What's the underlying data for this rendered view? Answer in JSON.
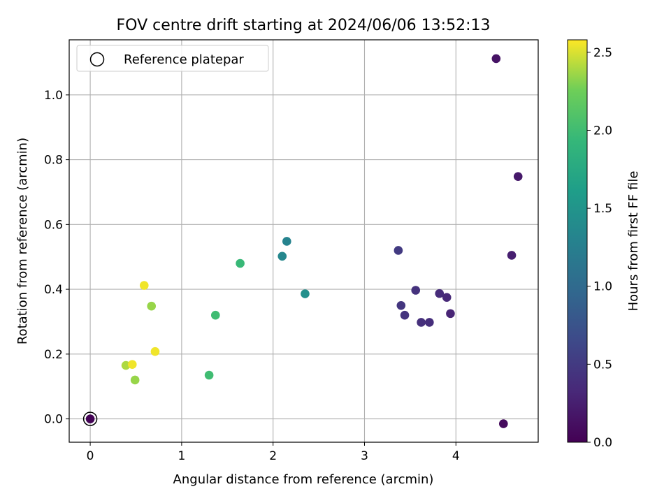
{
  "chart_data": {
    "type": "scatter",
    "title": "FOV centre drift starting at 2024/06/06 13:52:13",
    "xlabel": "Angular distance from reference (arcmin)",
    "ylabel": "Rotation from reference (arcmin)",
    "xlim": [
      -0.23,
      4.9
    ],
    "ylim": [
      -0.072,
      1.17
    ],
    "x_ticks": [
      0,
      1,
      2,
      3,
      4
    ],
    "y_ticks": [
      0.0,
      0.2,
      0.4,
      0.6,
      0.8,
      1.0
    ],
    "x_tick_labels": [
      "0",
      "1",
      "2",
      "3",
      "4"
    ],
    "y_tick_labels": [
      "0.0",
      "0.2",
      "0.4",
      "0.6",
      "0.8",
      "1.0"
    ],
    "grid": true,
    "legend": {
      "position": "top-left",
      "label": "Reference platepar"
    },
    "reference_point": {
      "x": 0,
      "y": 0
    },
    "colorbar": {
      "label": "Hours from first FF file",
      "min": 0.0,
      "max": 2.58,
      "ticks": [
        0.0,
        0.5,
        1.0,
        1.5,
        2.0,
        2.5
      ],
      "tick_labels": [
        "0.0",
        "0.5",
        "1.0",
        "1.5",
        "2.0",
        "2.5"
      ],
      "colormap": "viridis"
    },
    "points": [
      {
        "x": 0.0,
        "y": 0.0,
        "hours": 0.02
      },
      {
        "x": 4.52,
        "y": -0.015,
        "hours": 0.08
      },
      {
        "x": 4.44,
        "y": 1.112,
        "hours": 0.15
      },
      {
        "x": 4.68,
        "y": 0.748,
        "hours": 0.2
      },
      {
        "x": 4.61,
        "y": 0.505,
        "hours": 0.25
      },
      {
        "x": 3.94,
        "y": 0.325,
        "hours": 0.3
      },
      {
        "x": 3.9,
        "y": 0.375,
        "hours": 0.33
      },
      {
        "x": 3.82,
        "y": 0.387,
        "hours": 0.36
      },
      {
        "x": 3.71,
        "y": 0.298,
        "hours": 0.38
      },
      {
        "x": 3.62,
        "y": 0.298,
        "hours": 0.4
      },
      {
        "x": 3.56,
        "y": 0.397,
        "hours": 0.42
      },
      {
        "x": 3.44,
        "y": 0.32,
        "hours": 0.44
      },
      {
        "x": 3.4,
        "y": 0.35,
        "hours": 0.46
      },
      {
        "x": 3.37,
        "y": 0.52,
        "hours": 0.5
      },
      {
        "x": 2.15,
        "y": 0.548,
        "hours": 1.3
      },
      {
        "x": 2.1,
        "y": 0.502,
        "hours": 1.35
      },
      {
        "x": 2.35,
        "y": 0.386,
        "hours": 1.45
      },
      {
        "x": 1.64,
        "y": 0.48,
        "hours": 1.95
      },
      {
        "x": 1.37,
        "y": 0.32,
        "hours": 2.0
      },
      {
        "x": 1.3,
        "y": 0.135,
        "hours": 2.0
      },
      {
        "x": 0.67,
        "y": 0.348,
        "hours": 2.35
      },
      {
        "x": 0.49,
        "y": 0.12,
        "hours": 2.35
      },
      {
        "x": 0.39,
        "y": 0.165,
        "hours": 2.4
      },
      {
        "x": 0.59,
        "y": 0.412,
        "hours": 2.55
      },
      {
        "x": 0.46,
        "y": 0.168,
        "hours": 2.55
      },
      {
        "x": 0.71,
        "y": 0.208,
        "hours": 2.55
      }
    ]
  },
  "colors": {
    "axis": "#000000",
    "grid": "#b0b0b0",
    "legend_border": "#cccccc"
  }
}
